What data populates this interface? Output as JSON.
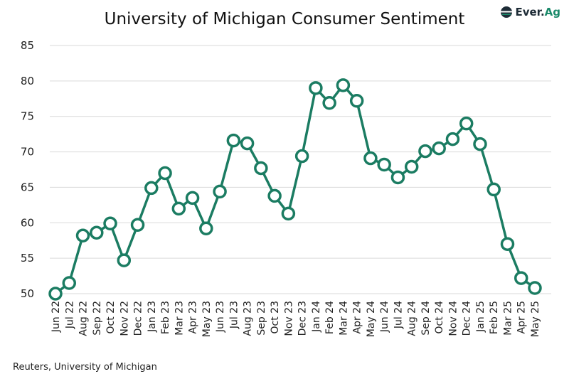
{
  "logo_text": "Ever.Ag",
  "source": "Reuters, University of Michigan",
  "colors": {
    "line": "#1b7c62",
    "marker_fill": "#ffffff",
    "grid": "#d9d9d9"
  },
  "chart_data": {
    "type": "line",
    "title": "University of Michigan Consumer Sentiment",
    "xlabel": "",
    "ylabel": "",
    "ylim": [
      50,
      85
    ],
    "yticks": [
      50,
      55,
      60,
      65,
      70,
      75,
      80,
      85
    ],
    "grid": "horizontal",
    "markers": "open-circle",
    "categories": [
      "Jun 22",
      "Jul 22",
      "Aug 22",
      "Sep 22",
      "Oct 22",
      "Nov 22",
      "Dec 22",
      "Jan 23",
      "Feb 23",
      "Mar 23",
      "Apr 23",
      "May 23",
      "Jun 23",
      "Jul 23",
      "Aug 23",
      "Sep 23",
      "Oct 23",
      "Nov 23",
      "Dec 23",
      "Jan 24",
      "Feb 24",
      "Mar 24",
      "Apr 24",
      "May 24",
      "Jun 24",
      "Jul 24",
      "Aug 24",
      "Sep 24",
      "Oct 24",
      "Nov 24",
      "Dec 24",
      "Jan 25",
      "Feb 25",
      "Mar 25",
      "Apr 25",
      "May 25"
    ],
    "values": [
      50.0,
      51.5,
      58.2,
      58.6,
      59.9,
      54.7,
      59.7,
      64.9,
      67.0,
      62.0,
      63.5,
      59.2,
      64.4,
      71.6,
      71.2,
      67.7,
      63.8,
      61.3,
      69.4,
      79.0,
      76.9,
      79.4,
      77.2,
      69.1,
      68.2,
      66.4,
      67.9,
      70.1,
      70.5,
      71.8,
      74.0,
      71.1,
      64.7,
      57.0,
      52.2,
      50.8
    ]
  }
}
